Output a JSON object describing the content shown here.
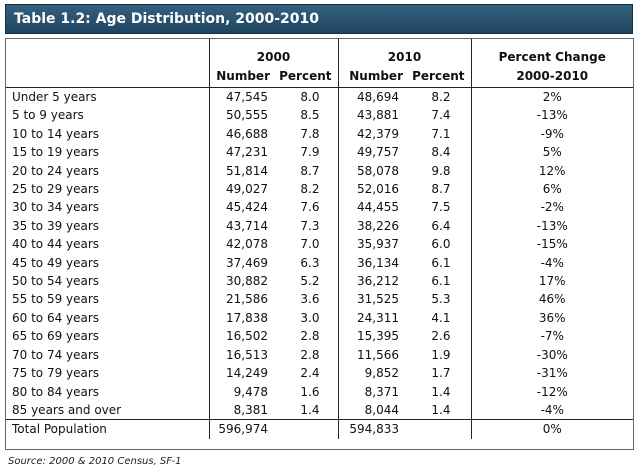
{
  "title": "Table 1.2: Age Distribution, 2000-2010",
  "headers": {
    "y2000": "2000",
    "y2010": "2010",
    "change_top": "Percent Change",
    "change_bottom": "2000-2010",
    "number": "Number",
    "percent": "Percent"
  },
  "rows": [
    {
      "label": "Under 5 years",
      "n2000": "47,545",
      "p2000": "8.0",
      "n2010": "48,694",
      "p2010": "8.2",
      "change": "2%"
    },
    {
      "label": "5 to 9 years",
      "n2000": "50,555",
      "p2000": "8.5",
      "n2010": "43,881",
      "p2010": "7.4",
      "change": "-13%"
    },
    {
      "label": "10 to 14 years",
      "n2000": "46,688",
      "p2000": "7.8",
      "n2010": "42,379",
      "p2010": "7.1",
      "change": "-9%"
    },
    {
      "label": "15 to 19 years",
      "n2000": "47,231",
      "p2000": "7.9",
      "n2010": "49,757",
      "p2010": "8.4",
      "change": "5%"
    },
    {
      "label": "20 to 24 years",
      "n2000": "51,814",
      "p2000": "8.7",
      "n2010": "58,078",
      "p2010": "9.8",
      "change": "12%"
    },
    {
      "label": "25 to 29 years",
      "n2000": "49,027",
      "p2000": "8.2",
      "n2010": "52,016",
      "p2010": "8.7",
      "change": "6%"
    },
    {
      "label": "30 to 34 years",
      "n2000": "45,424",
      "p2000": "7.6",
      "n2010": "44,455",
      "p2010": "7.5",
      "change": "-2%"
    },
    {
      "label": "35 to 39 years",
      "n2000": "43,714",
      "p2000": "7.3",
      "n2010": "38,226",
      "p2010": "6.4",
      "change": "-13%"
    },
    {
      "label": "40 to 44 years",
      "n2000": "42,078",
      "p2000": "7.0",
      "n2010": "35,937",
      "p2010": "6.0",
      "change": "-15%"
    },
    {
      "label": "45 to 49 years",
      "n2000": "37,469",
      "p2000": "6.3",
      "n2010": "36,134",
      "p2010": "6.1",
      "change": "-4%"
    },
    {
      "label": "50 to 54 years",
      "n2000": "30,882",
      "p2000": "5.2",
      "n2010": "36,212",
      "p2010": "6.1",
      "change": "17%"
    },
    {
      "label": "55 to 59 years",
      "n2000": "21,586",
      "p2000": "3.6",
      "n2010": "31,525",
      "p2010": "5.3",
      "change": "46%"
    },
    {
      "label": "60 to 64 years",
      "n2000": "17,838",
      "p2000": "3.0",
      "n2010": "24,311",
      "p2010": "4.1",
      "change": "36%"
    },
    {
      "label": "65 to 69 years",
      "n2000": "16,502",
      "p2000": "2.8",
      "n2010": "15,395",
      "p2010": "2.6",
      "change": "-7%"
    },
    {
      "label": "70 to 74 years",
      "n2000": "16,513",
      "p2000": "2.8",
      "n2010": "11,566",
      "p2010": "1.9",
      "change": "-30%"
    },
    {
      "label": "75 to 79 years",
      "n2000": "14,249",
      "p2000": "2.4",
      "n2010": "9,852",
      "p2010": "1.7",
      "change": "-31%"
    },
    {
      "label": "80 to 84 years",
      "n2000": "9,478",
      "p2000": "1.6",
      "n2010": "8,371",
      "p2010": "1.4",
      "change": "-12%"
    },
    {
      "label": "85 years and over",
      "n2000": "8,381",
      "p2000": "1.4",
      "n2010": "8,044",
      "p2010": "1.4",
      "change": "-4%"
    }
  ],
  "total": {
    "label": "Total Population",
    "n2000": "596,974",
    "n2010": "594,833",
    "change": "0%"
  },
  "source": "Source: 2000 & 2010 Census, SF-1"
}
